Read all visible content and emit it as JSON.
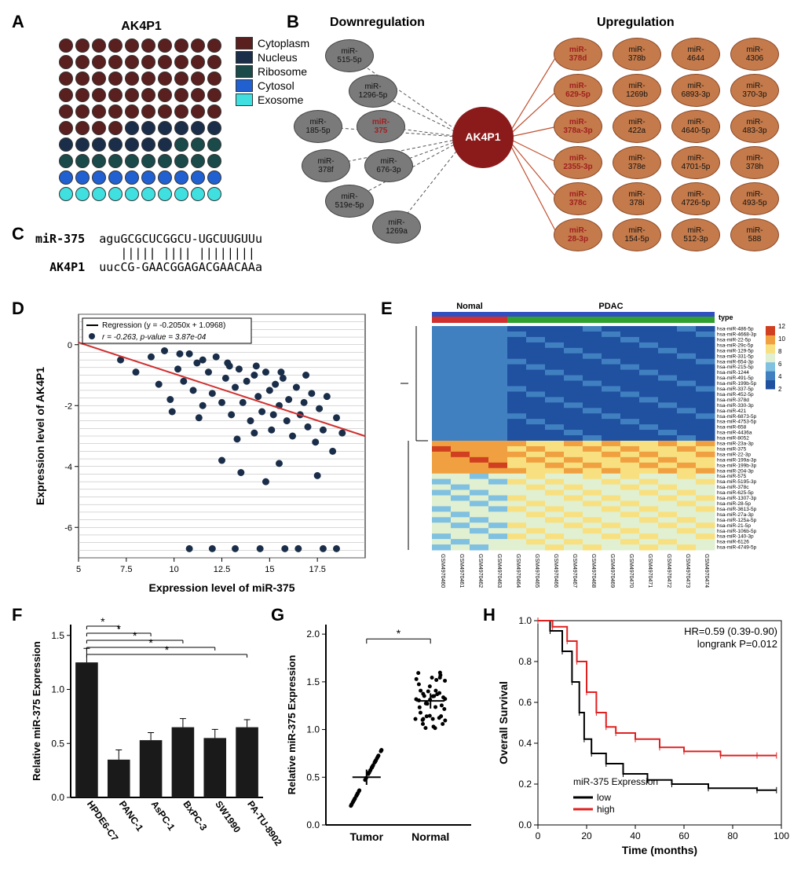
{
  "panelA": {
    "title": "AK4P1",
    "categories": [
      {
        "label": "Cytoplasm",
        "color": "#5a1f1f",
        "count": 54
      },
      {
        "label": "Nucleus",
        "color": "#1a2e4a",
        "count": 13
      },
      {
        "label": "Ribosome",
        "color": "#1a4a4a",
        "count": 13
      },
      {
        "label": "Cytosol",
        "color": "#2060d0",
        "count": 10
      },
      {
        "label": "Exosome",
        "color": "#40e0e0",
        "count": 10
      }
    ],
    "grid_cols": 10,
    "grid_rows": 10,
    "dot_size": 18
  },
  "panelB": {
    "down_title": "Downregulation",
    "up_title": "Upregulation",
    "center_label": "AK4P1",
    "center_color": "#8b1a1a",
    "down_color": "#7a7a7a",
    "up_color": "#c47a4a",
    "down_nodes": [
      "miR-515-5p",
      "miR-1296-5p",
      "miR-185-5p",
      "miR-375",
      "miR-378f",
      "miR-676-3p",
      "miR-519e-5p",
      "miR-1269a"
    ],
    "down_highlight": [
      "miR-375"
    ],
    "up_nodes": [
      "miR-378d",
      "miR-378b",
      "miR-4644",
      "miR-4306",
      "miR-629-5p",
      "miR-1269b",
      "miR-6893-3p",
      "miR-370-3p",
      "miR-378a-3p",
      "miR-422a",
      "miR-4640-5p",
      "miR-483-3p",
      "miR-2355-3p",
      "miR-378e",
      "miR-4701-5p",
      "miR-378h",
      "miR-378c",
      "miR-378i",
      "miR-4726-5p",
      "miR-493-5p",
      "miR-28-3p",
      "miR-154-5p",
      "miR-512-3p",
      "miR-588"
    ],
    "up_highlight": [
      "miR-378d",
      "miR-629-5p",
      "miR-378a-3p",
      "miR-2355-3p",
      "miR-378c",
      "miR-28-3p"
    ]
  },
  "panelC": {
    "label1": "miR-375",
    "seq1": "aguGCGCUCGGCU-UGCUUGUUu",
    "bars": "   ||||| |||| ||||||||",
    "label2": "AK4P1",
    "seq2": "uucCG-GAACGGAGACGAACAAa"
  },
  "panelD": {
    "regression_text": "Regression (y = -0.2050x + 1.0968)",
    "corr_text": "r = -0.263, p-value = 3.87e-04",
    "xlabel": "Expression level of miR-375",
    "ylabel": "Expression level of  AK4P1",
    "xlim": [
      5,
      20
    ],
    "ylim": [
      -7,
      1
    ],
    "xticks": [
      5,
      7.5,
      10,
      12.5,
      15,
      17.5
    ],
    "yticks": [
      -6,
      -4,
      -2,
      0
    ],
    "line_color": "#d03030",
    "point_color": "#1a2e4a",
    "gridline_color": "#b0b0b0",
    "points": [
      [
        7.2,
        -0.5
      ],
      [
        8.0,
        -0.9
      ],
      [
        8.8,
        -0.4
      ],
      [
        9.2,
        -1.3
      ],
      [
        9.5,
        -0.2
      ],
      [
        9.8,
        -1.8
      ],
      [
        10.2,
        -0.8
      ],
      [
        10.5,
        -1.2
      ],
      [
        10.8,
        -0.3
      ],
      [
        11.0,
        -1.5
      ],
      [
        11.2,
        -0.6
      ],
      [
        11.5,
        -2.0
      ],
      [
        11.8,
        -0.9
      ],
      [
        12.0,
        -1.6
      ],
      [
        12.2,
        -0.4
      ],
      [
        12.5,
        -1.9
      ],
      [
        12.7,
        -1.1
      ],
      [
        12.9,
        -0.7
      ],
      [
        13.0,
        -2.3
      ],
      [
        13.2,
        -1.4
      ],
      [
        13.4,
        -0.8
      ],
      [
        13.6,
        -1.9
      ],
      [
        13.8,
        -1.2
      ],
      [
        14.0,
        -2.5
      ],
      [
        14.2,
        -1.0
      ],
      [
        14.4,
        -1.7
      ],
      [
        14.6,
        -2.2
      ],
      [
        14.8,
        -0.9
      ],
      [
        15.0,
        -1.5
      ],
      [
        15.1,
        -2.8
      ],
      [
        15.3,
        -1.3
      ],
      [
        15.5,
        -2.0
      ],
      [
        15.7,
        -1.1
      ],
      [
        15.9,
        -2.5
      ],
      [
        16.0,
        -1.8
      ],
      [
        16.2,
        -3.0
      ],
      [
        16.4,
        -1.4
      ],
      [
        16.6,
        -2.3
      ],
      [
        16.8,
        -1.9
      ],
      [
        17.0,
        -2.7
      ],
      [
        17.2,
        -1.6
      ],
      [
        17.4,
        -3.2
      ],
      [
        17.6,
        -2.1
      ],
      [
        17.8,
        -2.8
      ],
      [
        18.0,
        -1.7
      ],
      [
        18.3,
        -3.5
      ],
      [
        18.5,
        -2.4
      ],
      [
        18.8,
        -2.9
      ],
      [
        12.5,
        -3.8
      ],
      [
        13.5,
        -4.2
      ],
      [
        14.8,
        -4.5
      ],
      [
        15.5,
        -3.9
      ],
      [
        10.8,
        -6.7
      ],
      [
        12.0,
        -6.7
      ],
      [
        13.2,
        -6.7
      ],
      [
        14.5,
        -6.7
      ],
      [
        15.8,
        -6.7
      ],
      [
        16.5,
        -6.7
      ],
      [
        17.8,
        -6.7
      ],
      [
        18.5,
        -6.7
      ],
      [
        11.5,
        -0.5
      ],
      [
        12.8,
        -0.6
      ],
      [
        14.3,
        -0.7
      ],
      [
        15.6,
        -0.9
      ],
      [
        16.9,
        -1.0
      ],
      [
        13.3,
        -3.1
      ],
      [
        14.2,
        -2.9
      ],
      [
        11.3,
        -2.4
      ],
      [
        9.9,
        -2.2
      ],
      [
        10.3,
        -0.3
      ],
      [
        17.5,
        -4.3
      ],
      [
        15.2,
        -2.3
      ]
    ]
  },
  "panelE": {
    "group1_label": "Nomal",
    "group2_label": "PDAC",
    "group1_color": "#d03030",
    "group2_color": "#30a030",
    "type_bar_color": "#3050c0",
    "colorbar_min": 2,
    "colorbar_max": 12,
    "heatmap_palette": [
      "#2050a0",
      "#4080c0",
      "#80c0e0",
      "#e0f0d0",
      "#f8e080",
      "#f0a040",
      "#d04020"
    ],
    "samples": [
      "GSM4970460",
      "GSM4970461",
      "GSM4970462",
      "GSM4970463",
      "GSM4970464",
      "GSM4970465",
      "GSM4970466",
      "GSM4970467",
      "GSM4970468",
      "GSM4970469",
      "GSM4970470",
      "GSM4970471",
      "GSM4970472",
      "GSM4970473",
      "GSM4970474"
    ],
    "sample_groups": [
      1,
      1,
      1,
      1,
      2,
      2,
      2,
      2,
      2,
      2,
      2,
      2,
      2,
      2,
      2
    ],
    "mirnas_top": [
      "hsa-miR-486-5p",
      "hsa-miR-4668-3p",
      "hsa-miR-22-5p",
      "hsa-miR-29c-5p",
      "hsa-miR-129-5p",
      "hsa-miR-331-5p",
      "hsa-miR-654-3p",
      "hsa-miR-215-5p",
      "hsa-miR-1244",
      "hsa-miR-491-5p",
      "hsa-miR-199b-5p",
      "hsa-miR-337-5p",
      "hsa-miR-452-5p",
      "hsa-miR-378d",
      "hsa-miR-330-3p",
      "hsa-miR-421",
      "hsa-miR-6873-5p",
      "hsa-miR-4753-5p",
      "hsa-miR-658",
      "hsa-miR-4436a",
      "hsa-miR-8052"
    ],
    "mirnas_bottom": [
      "hsa-miR-23a-3p",
      "hsa-miR-375",
      "hsa-miR-22-3p",
      "hsa-miR-199a-3p",
      "hsa-miR-199b-3p",
      "hsa-miR-204-3p",
      "hsa-miR-575",
      "hsa-miR-5195-3p",
      "hsa-miR-378c",
      "hsa-miR-625-5p",
      "hsa-miR-1307-3p",
      "hsa-miR-28-5p",
      "hsa-miR-3613-5p",
      "hsa-miR-27a-3p",
      "hsa-miR-125a-5p",
      "hsa-miR-21-5p",
      "hsa-miR-106b-5p",
      "hsa-miR-140-3p",
      "hsa-miR-6126",
      "hsa-miR-4749-5p"
    ]
  },
  "panelF": {
    "ylabel": "Relative miR-375 Expression",
    "ylim": [
      0,
      1.6
    ],
    "yticks": [
      0,
      0.5,
      1.0,
      1.5
    ],
    "categories": [
      "HPDE6-C7",
      "PANC-1",
      "AsPC-1",
      "BxPC-3",
      "SW1990",
      "PA-TU-8902"
    ],
    "values": [
      1.25,
      0.35,
      0.53,
      0.65,
      0.55,
      0.65
    ],
    "errors": [
      0.13,
      0.09,
      0.07,
      0.08,
      0.08,
      0.07
    ],
    "bar_color": "#1a1a1a",
    "sig_pairs": [
      [
        0,
        1
      ],
      [
        0,
        2
      ],
      [
        0,
        3
      ],
      [
        0,
        4
      ],
      [
        0,
        5
      ]
    ],
    "sig_symbol": "*"
  },
  "panelG": {
    "ylabel": "Relative miR-375 Expression",
    "ylim": [
      0,
      2.1
    ],
    "yticks": [
      0,
      0.5,
      1.0,
      1.5,
      2.0
    ],
    "categories": [
      "Tumor",
      "Normal"
    ],
    "tumor_mean": 0.5,
    "normal_mean": 1.3,
    "sig_symbol": "*",
    "point_color": "#000000"
  },
  "panelH": {
    "xlabel": "Time (months)",
    "ylabel": "Overall Survival",
    "xlim": [
      0,
      100
    ],
    "ylim": [
      0,
      1.0
    ],
    "xticks": [
      0,
      20,
      40,
      60,
      80,
      100
    ],
    "yticks": [
      0,
      0.2,
      0.4,
      0.6,
      0.8,
      1.0
    ],
    "hr_text": "HR=0.59 (0.39-0.90)",
    "logrank_text": "longrank P=0.012",
    "legend_title": "miR-375 Expression",
    "groups": [
      {
        "label": "low",
        "color": "#000000"
      },
      {
        "label": "high",
        "color": "#e02020"
      }
    ],
    "curve_low": [
      [
        0,
        1.0
      ],
      [
        5,
        0.95
      ],
      [
        10,
        0.85
      ],
      [
        14,
        0.7
      ],
      [
        17,
        0.55
      ],
      [
        19,
        0.42
      ],
      [
        22,
        0.35
      ],
      [
        28,
        0.3
      ],
      [
        35,
        0.25
      ],
      [
        45,
        0.22
      ],
      [
        55,
        0.2
      ],
      [
        70,
        0.18
      ],
      [
        90,
        0.17
      ],
      [
        98,
        0.17
      ]
    ],
    "curve_high": [
      [
        0,
        1.0
      ],
      [
        6,
        0.97
      ],
      [
        12,
        0.9
      ],
      [
        16,
        0.8
      ],
      [
        20,
        0.65
      ],
      [
        24,
        0.55
      ],
      [
        28,
        0.48
      ],
      [
        32,
        0.45
      ],
      [
        40,
        0.42
      ],
      [
        50,
        0.38
      ],
      [
        60,
        0.36
      ],
      [
        75,
        0.34
      ],
      [
        90,
        0.34
      ],
      [
        98,
        0.34
      ]
    ]
  }
}
